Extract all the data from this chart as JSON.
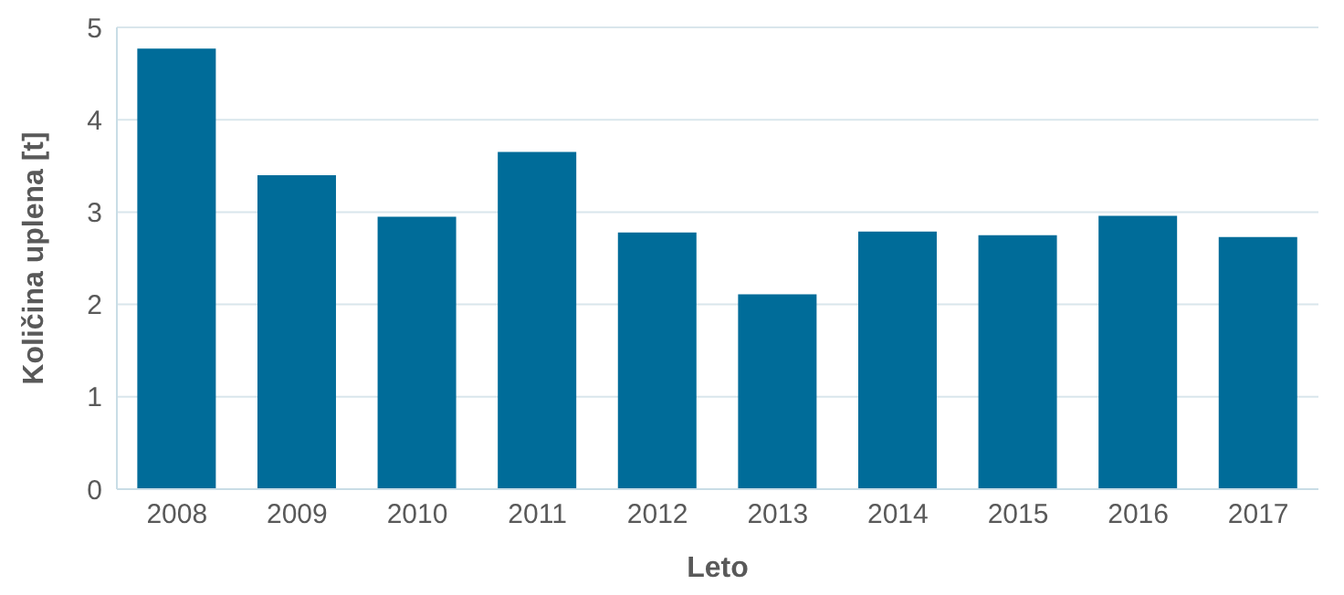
{
  "chart_data": {
    "type": "bar",
    "xlabel": "Leto",
    "ylabel": "Količina uplena [t]",
    "categories": [
      "2008",
      "2009",
      "2010",
      "2011",
      "2012",
      "2013",
      "2014",
      "2015",
      "2016",
      "2017"
    ],
    "values": [
      4.77,
      3.4,
      2.95,
      3.65,
      2.78,
      2.11,
      2.79,
      2.75,
      2.96,
      2.73
    ],
    "color": "#006c99",
    "ylim": [
      0,
      5
    ],
    "yticks": [
      0,
      1,
      2,
      3,
      4,
      5
    ],
    "grid": "y",
    "legend": false
  }
}
